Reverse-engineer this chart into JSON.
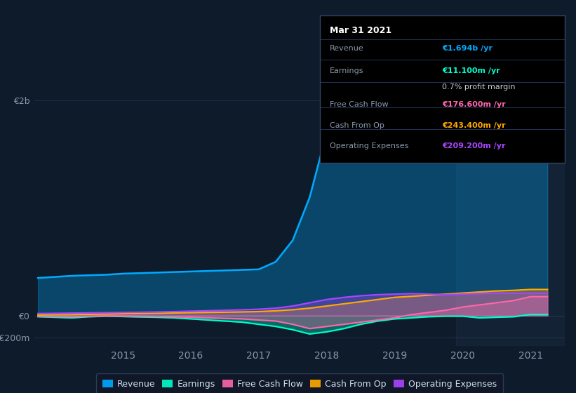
{
  "bg_color": "#0d1b2a",
  "plot_bg_color": "#0d1b2a",
  "grid_color": "#1e3048",
  "axis_label_color": "#8899aa",
  "text_color": "#ccddee",
  "y_ticks": [
    [
      -200000000,
      0,
      2000000000
    ],
    [
      "-€200m",
      "€0",
      "€2b"
    ]
  ],
  "x_ticks": [
    2015,
    2016,
    2017,
    2018,
    2019,
    2020,
    2021
  ],
  "x_tick_labels": [
    "2015",
    "2016",
    "2017",
    "2018",
    "2019",
    "2020",
    "2021"
  ],
  "ylim": [
    -280000000,
    2200000000
  ],
  "xlim": [
    2013.7,
    2021.5
  ],
  "revenue_color": "#00aaff",
  "earnings_color": "#00ffcc",
  "fcf_color": "#ff66aa",
  "cashop_color": "#ffaa00",
  "opex_color": "#aa44ff",
  "revenue_fill_alpha": 0.3,
  "other_fill_alpha": 0.35,
  "legend_items": [
    "Revenue",
    "Earnings",
    "Free Cash Flow",
    "Cash From Op",
    "Operating Expenses"
  ],
  "legend_colors": [
    "#00aaff",
    "#00ffcc",
    "#ff66aa",
    "#ffaa00",
    "#aa44ff"
  ],
  "tooltip_date": "Mar 31 2021",
  "tooltip_rows": [
    [
      "Revenue",
      "€1.694b /yr",
      "#00aaff"
    ],
    [
      "Earnings",
      "€11.100m /yr",
      "#00ffcc"
    ],
    [
      "",
      "0.7% profit margin",
      "#cccccc"
    ],
    [
      "Free Cash Flow",
      "€176.600m /yr",
      "#ff66aa"
    ],
    [
      "Cash From Op",
      "€243.400m /yr",
      "#ffaa00"
    ],
    [
      "Operating Expenses",
      "€209.200m /yr",
      "#aa44ff"
    ]
  ],
  "t": [
    2013.75,
    2014.0,
    2014.25,
    2014.5,
    2014.75,
    2015.0,
    2015.25,
    2015.5,
    2015.75,
    2016.0,
    2016.25,
    2016.5,
    2016.75,
    2017.0,
    2017.25,
    2017.5,
    2017.75,
    2018.0,
    2018.25,
    2018.5,
    2018.75,
    2019.0,
    2019.25,
    2019.5,
    2019.75,
    2020.0,
    2020.25,
    2020.5,
    2020.75,
    2021.0,
    2021.25
  ],
  "revenue": [
    350000000,
    360000000,
    370000000,
    375000000,
    380000000,
    390000000,
    395000000,
    400000000,
    405000000,
    410000000,
    415000000,
    420000000,
    425000000,
    430000000,
    500000000,
    700000000,
    1100000000,
    1700000000,
    1800000000,
    1850000000,
    1870000000,
    1900000000,
    1910000000,
    1880000000,
    1860000000,
    1880000000,
    1870000000,
    1820000000,
    1750000000,
    1694000000,
    1694000000
  ],
  "earnings": [
    -10000000,
    -15000000,
    -20000000,
    -10000000,
    -5000000,
    -8000000,
    -12000000,
    -15000000,
    -20000000,
    -30000000,
    -40000000,
    -50000000,
    -60000000,
    -80000000,
    -100000000,
    -130000000,
    -170000000,
    -150000000,
    -120000000,
    -80000000,
    -50000000,
    -30000000,
    -20000000,
    -10000000,
    -5000000,
    -5000000,
    -20000000,
    -15000000,
    -10000000,
    11100000,
    11100000
  ],
  "fcf": [
    -5000000,
    -8000000,
    -10000000,
    -5000000,
    -2000000,
    -3000000,
    -5000000,
    -8000000,
    -10000000,
    -15000000,
    -20000000,
    -25000000,
    -30000000,
    -40000000,
    -50000000,
    -80000000,
    -120000000,
    -100000000,
    -80000000,
    -60000000,
    -40000000,
    -20000000,
    10000000,
    30000000,
    50000000,
    80000000,
    100000000,
    120000000,
    140000000,
    176600000,
    176600000
  ],
  "cashop": [
    5000000,
    8000000,
    10000000,
    12000000,
    15000000,
    18000000,
    20000000,
    22000000,
    25000000,
    28000000,
    30000000,
    32000000,
    35000000,
    38000000,
    45000000,
    55000000,
    70000000,
    90000000,
    110000000,
    130000000,
    150000000,
    170000000,
    180000000,
    190000000,
    200000000,
    210000000,
    220000000,
    230000000,
    235000000,
    243400000,
    243400000
  ],
  "opex": [
    20000000,
    22000000,
    24000000,
    26000000,
    28000000,
    30000000,
    32000000,
    35000000,
    38000000,
    42000000,
    46000000,
    50000000,
    55000000,
    60000000,
    70000000,
    90000000,
    120000000,
    150000000,
    170000000,
    185000000,
    195000000,
    200000000,
    205000000,
    200000000,
    195000000,
    200000000,
    205000000,
    210000000,
    208000000,
    209200000,
    209200000
  ]
}
